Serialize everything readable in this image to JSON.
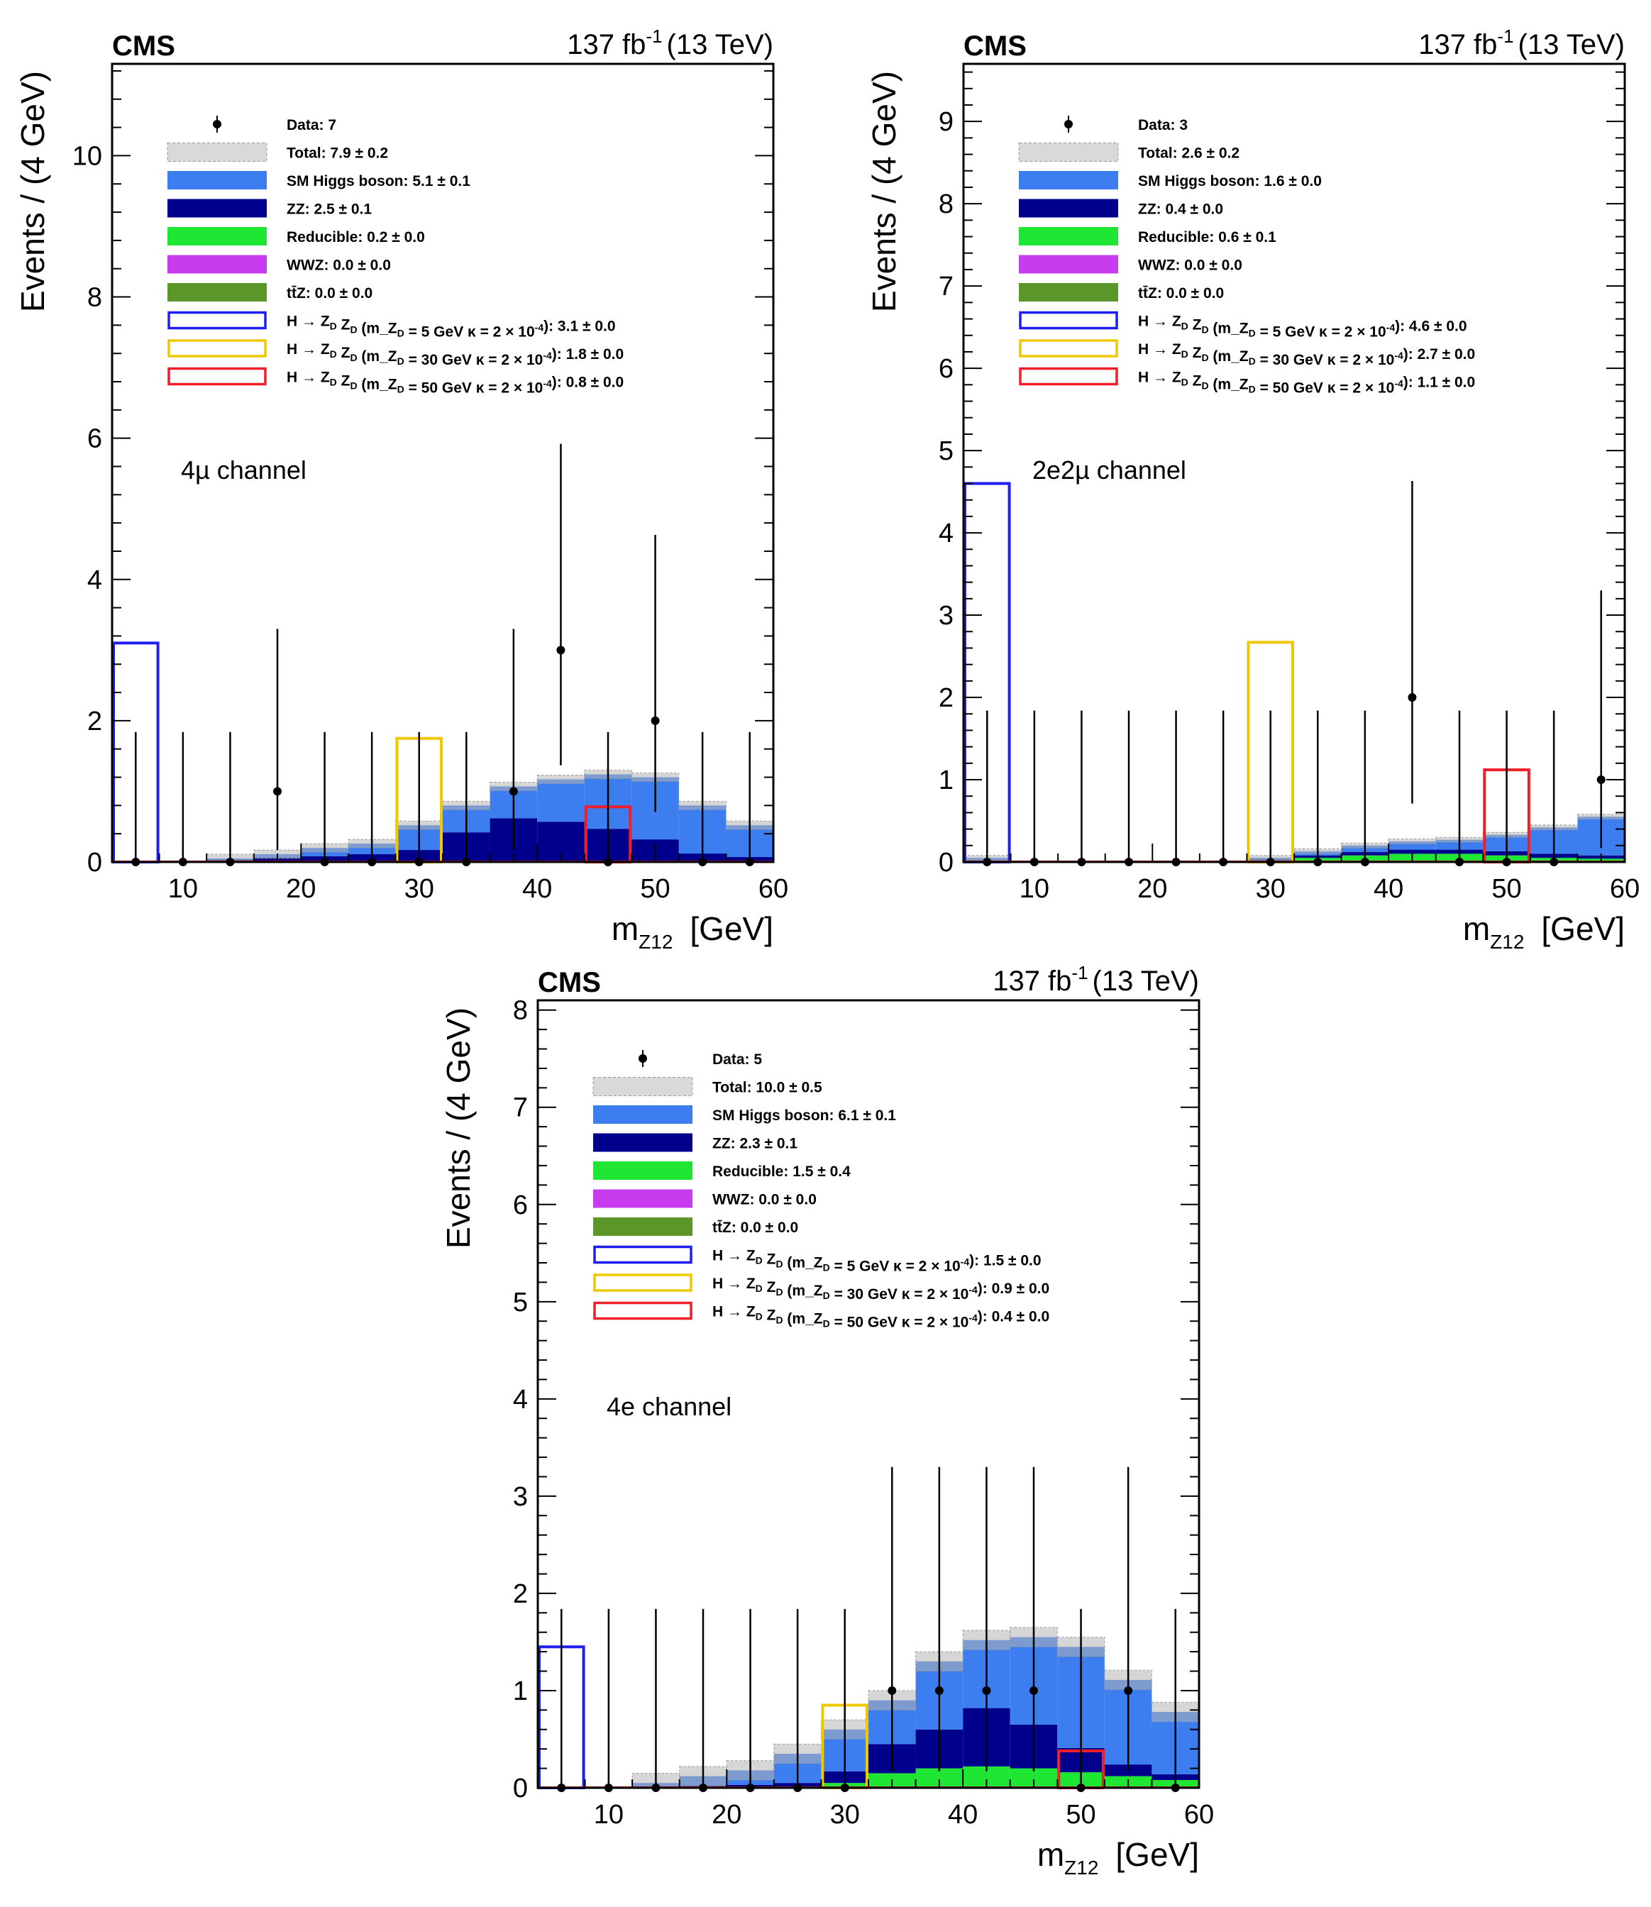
{
  "colors": {
    "higgs": "#3c7df0",
    "zz": "#00008c",
    "reducible": "#1ee632",
    "wwz": "#c83cf0",
    "ttz": "#5a9628",
    "sig5": "#1e1ef0",
    "sig30": "#f0c800",
    "sig50": "#f01e28",
    "data": "#000000",
    "band": "#b4b4b4"
  },
  "chart_data": [
    {
      "type": "bar",
      "stacked": true,
      "title": "CMS",
      "lumi_label": "137 fb",
      "lumi_exp": "-1",
      "energy_label": "(13 TeV)",
      "ylabel": "Events / (4 GeV)",
      "xlabel": "m",
      "xlabel_sub": "Z12",
      "xlabel_unit": "[GeV]",
      "channel": "4µ channel",
      "xlim": [
        4,
        60
      ],
      "ylim": [
        0,
        11.3
      ],
      "xticks": [
        10,
        20,
        30,
        40,
        50,
        60
      ],
      "xtick_labels": [
        "10",
        "20",
        "30",
        "40",
        "50",
        "60"
      ],
      "yticks": [
        0,
        2,
        4,
        6,
        8,
        10
      ],
      "ytick_labels": [
        "0",
        "2",
        "4",
        "6",
        "8",
        "10"
      ],
      "bin_edges": [
        4,
        8,
        12,
        16,
        20,
        24,
        28,
        32,
        36,
        40,
        44,
        48,
        52,
        56,
        60
      ],
      "stack": [
        {
          "name": "ttz",
          "values": [
            0,
            0,
            0,
            0,
            0,
            0,
            0,
            0,
            0,
            0,
            0,
            0,
            0,
            0
          ]
        },
        {
          "name": "wwz",
          "values": [
            0,
            0,
            0,
            0,
            0,
            0,
            0,
            0,
            0,
            0,
            0,
            0,
            0,
            0
          ]
        },
        {
          "name": "reducible",
          "values": [
            0,
            0,
            0,
            0.01,
            0.01,
            0.01,
            0.02,
            0.02,
            0.02,
            0.02,
            0.02,
            0.02,
            0.02,
            0.02
          ]
        },
        {
          "name": "zz",
          "values": [
            0,
            0.01,
            0.03,
            0.05,
            0.07,
            0.1,
            0.15,
            0.4,
            0.6,
            0.55,
            0.45,
            0.3,
            0.1,
            0.05
          ]
        },
        {
          "name": "higgs",
          "values": [
            0,
            0.01,
            0.02,
            0.05,
            0.12,
            0.15,
            0.35,
            0.38,
            0.45,
            0.6,
            0.77,
            0.88,
            0.68,
            0.45
          ]
        }
      ],
      "total_unc": 0.06,
      "signals": [
        {
          "name": "sig5",
          "values": [
            3.1,
            0,
            0,
            0,
            0,
            0,
            0,
            0,
            0,
            0,
            0,
            0,
            0,
            0
          ]
        },
        {
          "name": "sig30",
          "values": [
            0,
            0,
            0,
            0,
            0,
            0,
            1.75,
            0,
            0,
            0,
            0,
            0,
            0,
            0
          ]
        },
        {
          "name": "sig50",
          "values": [
            0,
            0,
            0,
            0,
            0,
            0,
            0,
            0,
            0,
            0,
            0.78,
            0,
            0,
            0
          ]
        }
      ],
      "data_points": {
        "x": [
          6,
          10,
          14,
          18,
          22,
          26,
          30,
          34,
          38,
          42,
          46,
          50,
          54,
          58
        ],
        "y": [
          0,
          0,
          0,
          1,
          0,
          0,
          0,
          0,
          1,
          3,
          0,
          2,
          0,
          0
        ],
        "err_hi": [
          1.84,
          1.84,
          1.84,
          2.3,
          1.84,
          1.84,
          1.84,
          1.84,
          2.3,
          2.92,
          1.84,
          2.63,
          1.84,
          1.84
        ],
        "err_lo": [
          0,
          0,
          0,
          0.83,
          0,
          0,
          0,
          0,
          0.83,
          1.63,
          0,
          1.29,
          0,
          0
        ]
      },
      "legend": [
        {
          "key": "data",
          "style": "marker",
          "label": "Data: 7"
        },
        {
          "key": "band",
          "style": "band",
          "label": "Total:  7.9 ± 0.2"
        },
        {
          "key": "higgs",
          "style": "fill",
          "label": "SM Higgs boson:  5.1 ± 0.1"
        },
        {
          "key": "zz",
          "style": "fill",
          "label": "ZZ:  2.5 ± 0.1"
        },
        {
          "key": "reducible",
          "style": "fill",
          "label": "Reducible:  0.2 ± 0.0"
        },
        {
          "key": "wwz",
          "style": "fill",
          "label": "WWZ:  0.0 ± 0.0"
        },
        {
          "key": "ttz",
          "style": "fill",
          "label": "tt̄Z:  0.0 ± 0.0"
        },
        {
          "key": "sig5",
          "style": "line",
          "label": "H → Z_D Z_D (m_Z_D = 5 GeV  κ = 2 × 10^-4):  3.1 ± 0.0"
        },
        {
          "key": "sig30",
          "style": "line",
          "label": "H → Z_D Z_D (m_Z_D = 30 GeV  κ = 2 × 10^-4):  1.8 ± 0.0"
        },
        {
          "key": "sig50",
          "style": "line",
          "label": "H → Z_D Z_D (m_Z_D = 50 GeV  κ = 2 × 10^-4):  0.8 ± 0.0"
        }
      ]
    },
    {
      "type": "bar",
      "stacked": true,
      "title": "CMS",
      "lumi_label": "137 fb",
      "lumi_exp": "-1",
      "energy_label": "(13 TeV)",
      "ylabel": "Events / (4 GeV)",
      "xlabel": "m",
      "xlabel_sub": "Z12",
      "xlabel_unit": "[GeV]",
      "channel": "2e2µ channel",
      "xlim": [
        4,
        60
      ],
      "ylim": [
        0,
        9.7
      ],
      "xticks": [
        10,
        20,
        30,
        40,
        50,
        60
      ],
      "xtick_labels": [
        "10",
        "20",
        "30",
        "40",
        "50",
        "60"
      ],
      "yticks": [
        0,
        1,
        2,
        3,
        4,
        5,
        6,
        7,
        8,
        9
      ],
      "ytick_labels": [
        "0",
        "1",
        "2",
        "3",
        "4",
        "5",
        "6",
        "7",
        "8",
        "9"
      ],
      "bin_edges": [
        4,
        8,
        12,
        16,
        20,
        24,
        28,
        32,
        36,
        40,
        44,
        48,
        52,
        56,
        60
      ],
      "stack": [
        {
          "name": "ttz",
          "values": [
            0,
            0,
            0,
            0,
            0,
            0,
            0,
            0,
            0,
            0,
            0,
            0,
            0,
            0
          ]
        },
        {
          "name": "wwz",
          "values": [
            0,
            0,
            0,
            0,
            0,
            0,
            0,
            0,
            0,
            0,
            0,
            0,
            0,
            0
          ]
        },
        {
          "name": "reducible",
          "values": [
            0,
            0,
            0,
            0,
            0,
            0,
            0.02,
            0.05,
            0.08,
            0.1,
            0.1,
            0.08,
            0.05,
            0.04
          ]
        },
        {
          "name": "zz",
          "values": [
            0,
            0,
            0,
            0,
            0,
            0,
            0.01,
            0.03,
            0.04,
            0.05,
            0.05,
            0.05,
            0.05,
            0.04
          ]
        },
        {
          "name": "higgs",
          "values": [
            0.05,
            0,
            0,
            0,
            0,
            0,
            0.02,
            0.05,
            0.08,
            0.1,
            0.12,
            0.2,
            0.32,
            0.47
          ]
        }
      ],
      "total_unc": 0.03,
      "signals": [
        {
          "name": "sig5",
          "values": [
            4.6,
            0,
            0,
            0,
            0,
            0,
            0,
            0,
            0,
            0,
            0,
            0,
            0,
            0
          ]
        },
        {
          "name": "sig30",
          "values": [
            0,
            0,
            0,
            0,
            0,
            0,
            2.67,
            0,
            0,
            0,
            0,
            0,
            0,
            0
          ]
        },
        {
          "name": "sig50",
          "values": [
            0,
            0,
            0,
            0,
            0,
            0,
            0,
            0,
            0,
            0,
            0,
            1.12,
            0,
            0
          ]
        }
      ],
      "data_points": {
        "x": [
          6,
          10,
          14,
          18,
          22,
          26,
          30,
          34,
          38,
          42,
          46,
          50,
          54,
          58
        ],
        "y": [
          0,
          0,
          0,
          0,
          0,
          0,
          0,
          0,
          0,
          2,
          0,
          0,
          0,
          1
        ],
        "err_hi": [
          1.84,
          1.84,
          1.84,
          1.84,
          1.84,
          1.84,
          1.84,
          1.84,
          1.84,
          2.63,
          1.84,
          1.84,
          1.84,
          2.3
        ],
        "err_lo": [
          0,
          0,
          0,
          0,
          0,
          0,
          0,
          0,
          0,
          1.29,
          0,
          0,
          0,
          0.83
        ]
      },
      "legend": [
        {
          "key": "data",
          "style": "marker",
          "label": "Data: 3"
        },
        {
          "key": "band",
          "style": "band",
          "label": "Total:  2.6 ± 0.2"
        },
        {
          "key": "higgs",
          "style": "fill",
          "label": "SM Higgs boson:  1.6 ± 0.0"
        },
        {
          "key": "zz",
          "style": "fill",
          "label": "ZZ:  0.4 ± 0.0"
        },
        {
          "key": "reducible",
          "style": "fill",
          "label": "Reducible:  0.6 ± 0.1"
        },
        {
          "key": "wwz",
          "style": "fill",
          "label": "WWZ:  0.0 ± 0.0"
        },
        {
          "key": "ttz",
          "style": "fill",
          "label": "tt̄Z:  0.0 ± 0.0"
        },
        {
          "key": "sig5",
          "style": "line",
          "label": "H → Z_D Z_D (m_Z_D = 5 GeV  κ = 2 × 10^-4):  4.6 ± 0.0"
        },
        {
          "key": "sig30",
          "style": "line",
          "label": "H → Z_D Z_D (m_Z_D = 30 GeV  κ = 2 × 10^-4):  2.7 ± 0.0"
        },
        {
          "key": "sig50",
          "style": "line",
          "label": "H → Z_D Z_D (m_Z_D = 50 GeV  κ = 2 × 10^-4):  1.1 ± 0.0"
        }
      ]
    },
    {
      "type": "bar",
      "stacked": true,
      "title": "CMS",
      "lumi_label": "137 fb",
      "lumi_exp": "-1",
      "energy_label": "(13 TeV)",
      "ylabel": "Events / (4 GeV)",
      "xlabel": "m",
      "xlabel_sub": "Z12",
      "xlabel_unit": "[GeV]",
      "channel": "4e channel",
      "xlim": [
        4,
        60
      ],
      "ylim": [
        0,
        8.1
      ],
      "xticks": [
        10,
        20,
        30,
        40,
        50,
        60
      ],
      "xtick_labels": [
        "10",
        "20",
        "30",
        "40",
        "50",
        "60"
      ],
      "yticks": [
        0,
        1,
        2,
        3,
        4,
        5,
        6,
        7,
        8
      ],
      "ytick_labels": [
        "0",
        "1",
        "2",
        "3",
        "4",
        "5",
        "6",
        "7",
        "8"
      ],
      "bin_edges": [
        4,
        8,
        12,
        16,
        20,
        24,
        28,
        32,
        36,
        40,
        44,
        48,
        52,
        56,
        60
      ],
      "stack": [
        {
          "name": "ttz",
          "values": [
            0,
            0,
            0,
            0,
            0,
            0,
            0,
            0,
            0,
            0,
            0,
            0,
            0,
            0
          ]
        },
        {
          "name": "wwz",
          "values": [
            0,
            0,
            0,
            0,
            0,
            0,
            0,
            0,
            0,
            0,
            0,
            0,
            0,
            0
          ]
        },
        {
          "name": "reducible",
          "values": [
            0,
            0,
            0,
            0,
            0,
            0,
            0.05,
            0.15,
            0.2,
            0.22,
            0.2,
            0.16,
            0.12,
            0.08
          ]
        },
        {
          "name": "zz",
          "values": [
            0,
            0,
            0.01,
            0.02,
            0.03,
            0.05,
            0.12,
            0.3,
            0.4,
            0.6,
            0.45,
            0.25,
            0.12,
            0.06
          ]
        },
        {
          "name": "higgs",
          "values": [
            0,
            0,
            0.04,
            0.1,
            0.15,
            0.3,
            0.43,
            0.45,
            0.7,
            0.7,
            0.9,
            1.04,
            0.87,
            0.64
          ]
        }
      ],
      "total_unc": 0.1,
      "signals": [
        {
          "name": "sig5",
          "values": [
            1.45,
            0,
            0,
            0,
            0,
            0,
            0,
            0,
            0,
            0,
            0,
            0,
            0,
            0
          ]
        },
        {
          "name": "sig30",
          "values": [
            0,
            0,
            0,
            0,
            0,
            0,
            0.85,
            0,
            0,
            0,
            0,
            0,
            0,
            0
          ]
        },
        {
          "name": "sig50",
          "values": [
            0,
            0,
            0,
            0,
            0,
            0,
            0,
            0,
            0,
            0,
            0,
            0.38,
            0,
            0
          ]
        }
      ],
      "data_points": {
        "x": [
          6,
          10,
          14,
          18,
          22,
          26,
          30,
          34,
          38,
          42,
          46,
          50,
          54,
          58
        ],
        "y": [
          0,
          0,
          0,
          0,
          0,
          0,
          0,
          1,
          1,
          1,
          1,
          0,
          1,
          0
        ],
        "err_hi": [
          1.84,
          1.84,
          1.84,
          1.84,
          1.84,
          1.84,
          1.84,
          2.3,
          2.3,
          2.3,
          2.3,
          1.84,
          2.3,
          1.84
        ],
        "err_lo": [
          0,
          0,
          0,
          0,
          0,
          0,
          0,
          0.83,
          0.83,
          0.83,
          0.83,
          0,
          0.83,
          0
        ]
      },
      "legend": [
        {
          "key": "data",
          "style": "marker",
          "label": "Data: 5"
        },
        {
          "key": "band",
          "style": "band",
          "label": "Total: 10.0 ± 0.5"
        },
        {
          "key": "higgs",
          "style": "fill",
          "label": "SM Higgs boson:  6.1 ± 0.1"
        },
        {
          "key": "zz",
          "style": "fill",
          "label": "ZZ:  2.3 ± 0.1"
        },
        {
          "key": "reducible",
          "style": "fill",
          "label": "Reducible:  1.5 ± 0.4"
        },
        {
          "key": "wwz",
          "style": "fill",
          "label": "WWZ:  0.0 ± 0.0"
        },
        {
          "key": "ttz",
          "style": "fill",
          "label": "tt̄Z:  0.0 ± 0.0"
        },
        {
          "key": "sig5",
          "style": "line",
          "label": "H → Z_D Z_D (m_Z_D = 5 GeV  κ = 2 × 10^-4):  1.5 ± 0.0"
        },
        {
          "key": "sig30",
          "style": "line",
          "label": "H → Z_D Z_D (m_Z_D = 30 GeV  κ = 2 × 10^-4):  0.9 ± 0.0"
        },
        {
          "key": "sig50",
          "style": "line",
          "label": "H → Z_D Z_D (m_Z_D = 50 GeV  κ = 2 × 10^-4):  0.4 ± 0.0"
        }
      ]
    }
  ]
}
